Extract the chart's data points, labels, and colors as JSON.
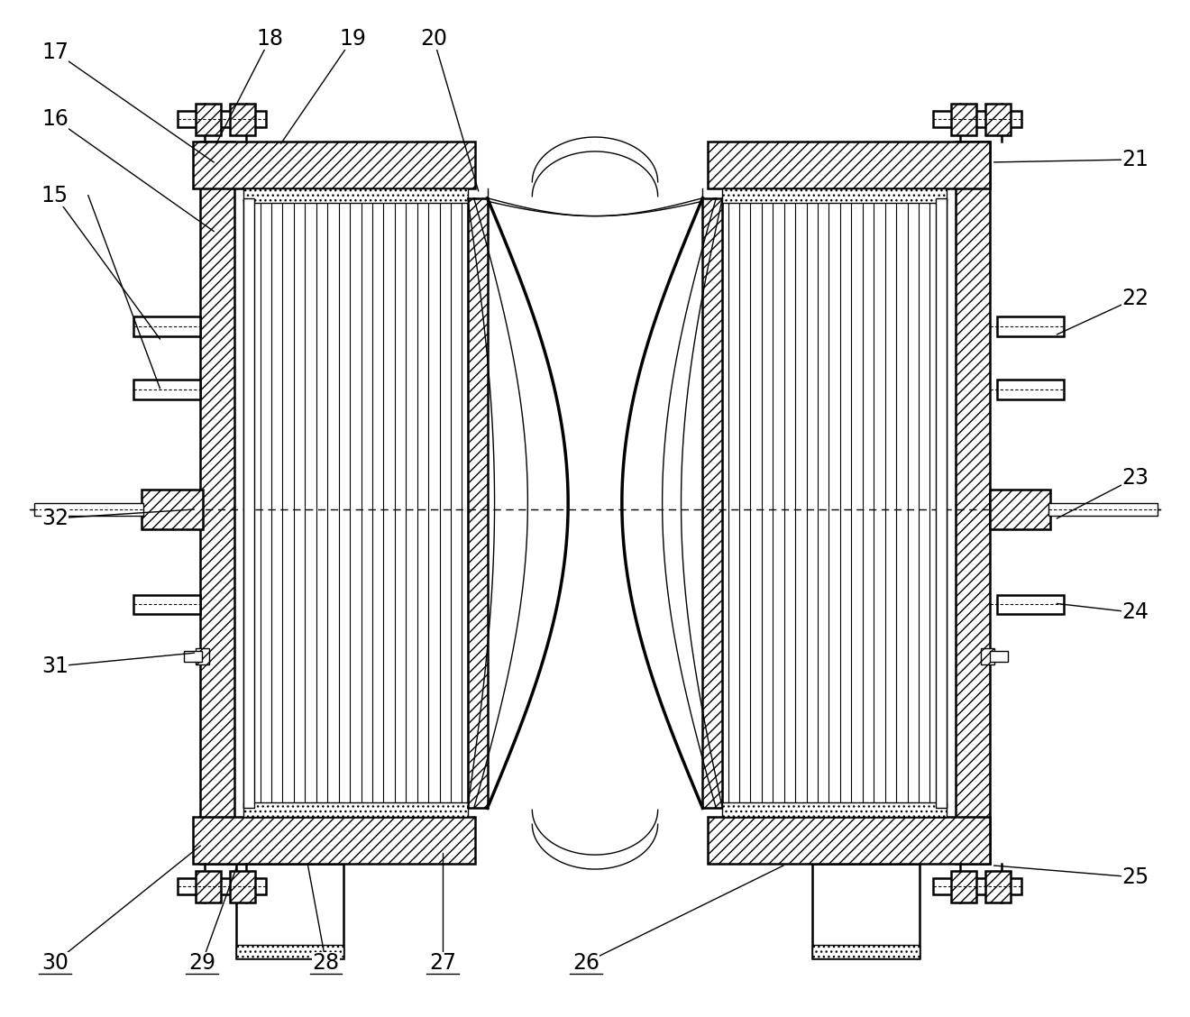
{
  "bg_color": "#ffffff",
  "fig_width": 13.2,
  "fig_height": 11.28,
  "dpi": 100,
  "lw_thin": 1.0,
  "lw_med": 1.8,
  "lw_thick": 2.5,
  "n_stripes": 20,
  "fontsize": 17
}
